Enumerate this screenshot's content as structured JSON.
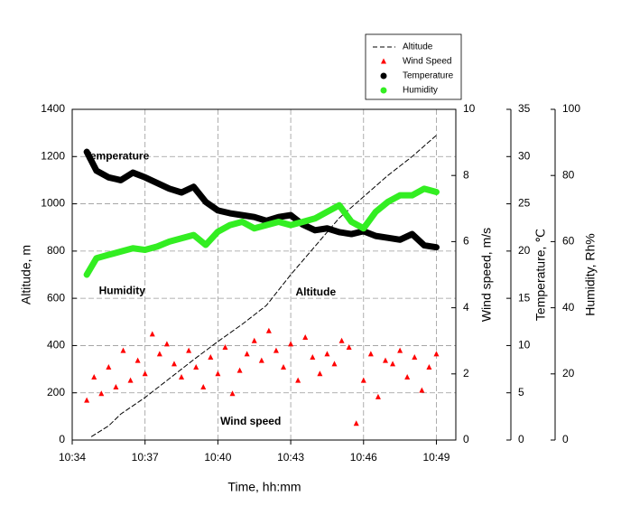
{
  "chart_data": {
    "type": "line",
    "xlabel": "Time, hh:mm",
    "ylabel": "Altitude, m",
    "y2label": "Wind speed, m/s",
    "y3label": "Temperature, ℃",
    "y4label": "Humidity, Rh%",
    "xlim": [
      634,
      649.8
    ],
    "xticks": [
      {
        "value": 634,
        "label": "10:34"
      },
      {
        "value": 637,
        "label": "10:37"
      },
      {
        "value": 640,
        "label": "10:40"
      },
      {
        "value": 643,
        "label": "10:43"
      },
      {
        "value": 646,
        "label": "10:46"
      },
      {
        "value": 649,
        "label": "10:49"
      }
    ],
    "ylim": [
      0,
      1400
    ],
    "yticks": [
      0,
      200,
      400,
      600,
      800,
      1000,
      1200,
      1400
    ],
    "y2lim": [
      0,
      10
    ],
    "y2ticks": [
      0,
      2,
      4,
      6,
      8,
      10
    ],
    "y3lim": [
      0,
      35
    ],
    "y3ticks": [
      0,
      5,
      10,
      15,
      20,
      25,
      30,
      35
    ],
    "y4lim": [
      0,
      100
    ],
    "y4ticks": [
      0,
      20,
      40,
      60,
      80,
      100
    ],
    "grid": true,
    "annotations": [
      {
        "text": "Temperature",
        "x": 634.5,
        "y": 1200
      },
      {
        "text": "Humidity",
        "x": 635.1,
        "y": 630
      },
      {
        "text": "Altitude",
        "x": 643.2,
        "y": 625
      },
      {
        "text": "Wind speed",
        "x": 640.1,
        "y": 78
      }
    ],
    "series": [
      {
        "name": "Altitude",
        "style": "dashed-line",
        "color": "#000000",
        "axis": "y",
        "x": [
          634.8,
          635.5,
          636,
          637,
          638,
          639,
          640,
          641,
          642,
          643,
          644,
          645,
          646,
          647,
          648,
          649
        ],
        "values": [
          15,
          60,
          110,
          180,
          260,
          340,
          417,
          490,
          570,
          700,
          820,
          940,
          1030,
          1120,
          1200,
          1290
        ]
      },
      {
        "name": "Wind Speed",
        "style": "triangle",
        "color": "#ff0000",
        "axis": "y2",
        "x": [
          634.6,
          634.9,
          635.2,
          635.5,
          635.8,
          636.1,
          636.4,
          636.7,
          637.0,
          637.3,
          637.6,
          637.9,
          638.2,
          638.5,
          638.8,
          639.1,
          639.4,
          639.7,
          640.0,
          640.3,
          640.6,
          640.9,
          641.2,
          641.5,
          641.8,
          642.1,
          642.4,
          642.7,
          643.0,
          643.3,
          643.6,
          643.9,
          644.2,
          644.5,
          644.8,
          645.1,
          645.4,
          645.7,
          646.0,
          646.3,
          646.6,
          646.9,
          647.2,
          647.5,
          647.8,
          648.1,
          648.4,
          648.7,
          649.0
        ],
        "values": [
          1.2,
          1.9,
          1.4,
          2.2,
          1.6,
          2.7,
          1.8,
          2.4,
          2.0,
          3.2,
          2.6,
          2.9,
          2.3,
          1.9,
          2.7,
          2.2,
          1.6,
          2.5,
          2.0,
          2.8,
          1.4,
          2.1,
          2.6,
          3.0,
          2.4,
          3.3,
          2.7,
          2.2,
          2.9,
          1.8,
          3.1,
          2.5,
          2.0,
          2.6,
          2.3,
          3.0,
          2.8,
          0.5,
          1.8,
          2.6,
          1.3,
          2.4,
          2.3,
          2.7,
          1.9,
          2.5,
          1.5,
          2.2,
          2.6
        ]
      },
      {
        "name": "Temperature",
        "style": "dots",
        "color": "#000000",
        "axis": "y3",
        "x": [
          634.6,
          635,
          635.5,
          636,
          636.5,
          637,
          637.5,
          638,
          638.5,
          639,
          639.5,
          640,
          640.5,
          641,
          641.5,
          642,
          642.5,
          643,
          643.5,
          644,
          644.5,
          645,
          645.5,
          646,
          646.5,
          647,
          647.5,
          648,
          648.5,
          649
        ],
        "values": [
          30.5,
          28.5,
          27.8,
          27.5,
          28.3,
          27.8,
          27.2,
          26.6,
          26.2,
          26.8,
          25.2,
          24.3,
          24.0,
          23.8,
          23.6,
          23.2,
          23.6,
          23.8,
          22.8,
          22.2,
          22.4,
          22.0,
          21.8,
          22.1,
          21.6,
          21.4,
          21.2,
          21.8,
          20.6,
          20.4
        ]
      },
      {
        "name": "Humidity",
        "style": "dots",
        "color": "#33ee22",
        "axis": "y4",
        "x": [
          634.6,
          635,
          635.5,
          636,
          636.5,
          637,
          637.5,
          638,
          638.5,
          639,
          639.5,
          640,
          640.5,
          641,
          641.5,
          642,
          642.5,
          643,
          643.5,
          644,
          644.5,
          645,
          645.5,
          646,
          646.5,
          647,
          647.5,
          648,
          648.5,
          649
        ],
        "values": [
          50,
          55,
          56,
          57,
          58,
          57.5,
          58.5,
          60,
          61,
          62,
          59,
          63,
          65,
          66,
          64,
          65,
          66,
          65,
          66,
          67,
          69,
          71,
          66,
          64,
          69,
          72,
          74,
          74,
          76,
          75
        ]
      }
    ]
  }
}
